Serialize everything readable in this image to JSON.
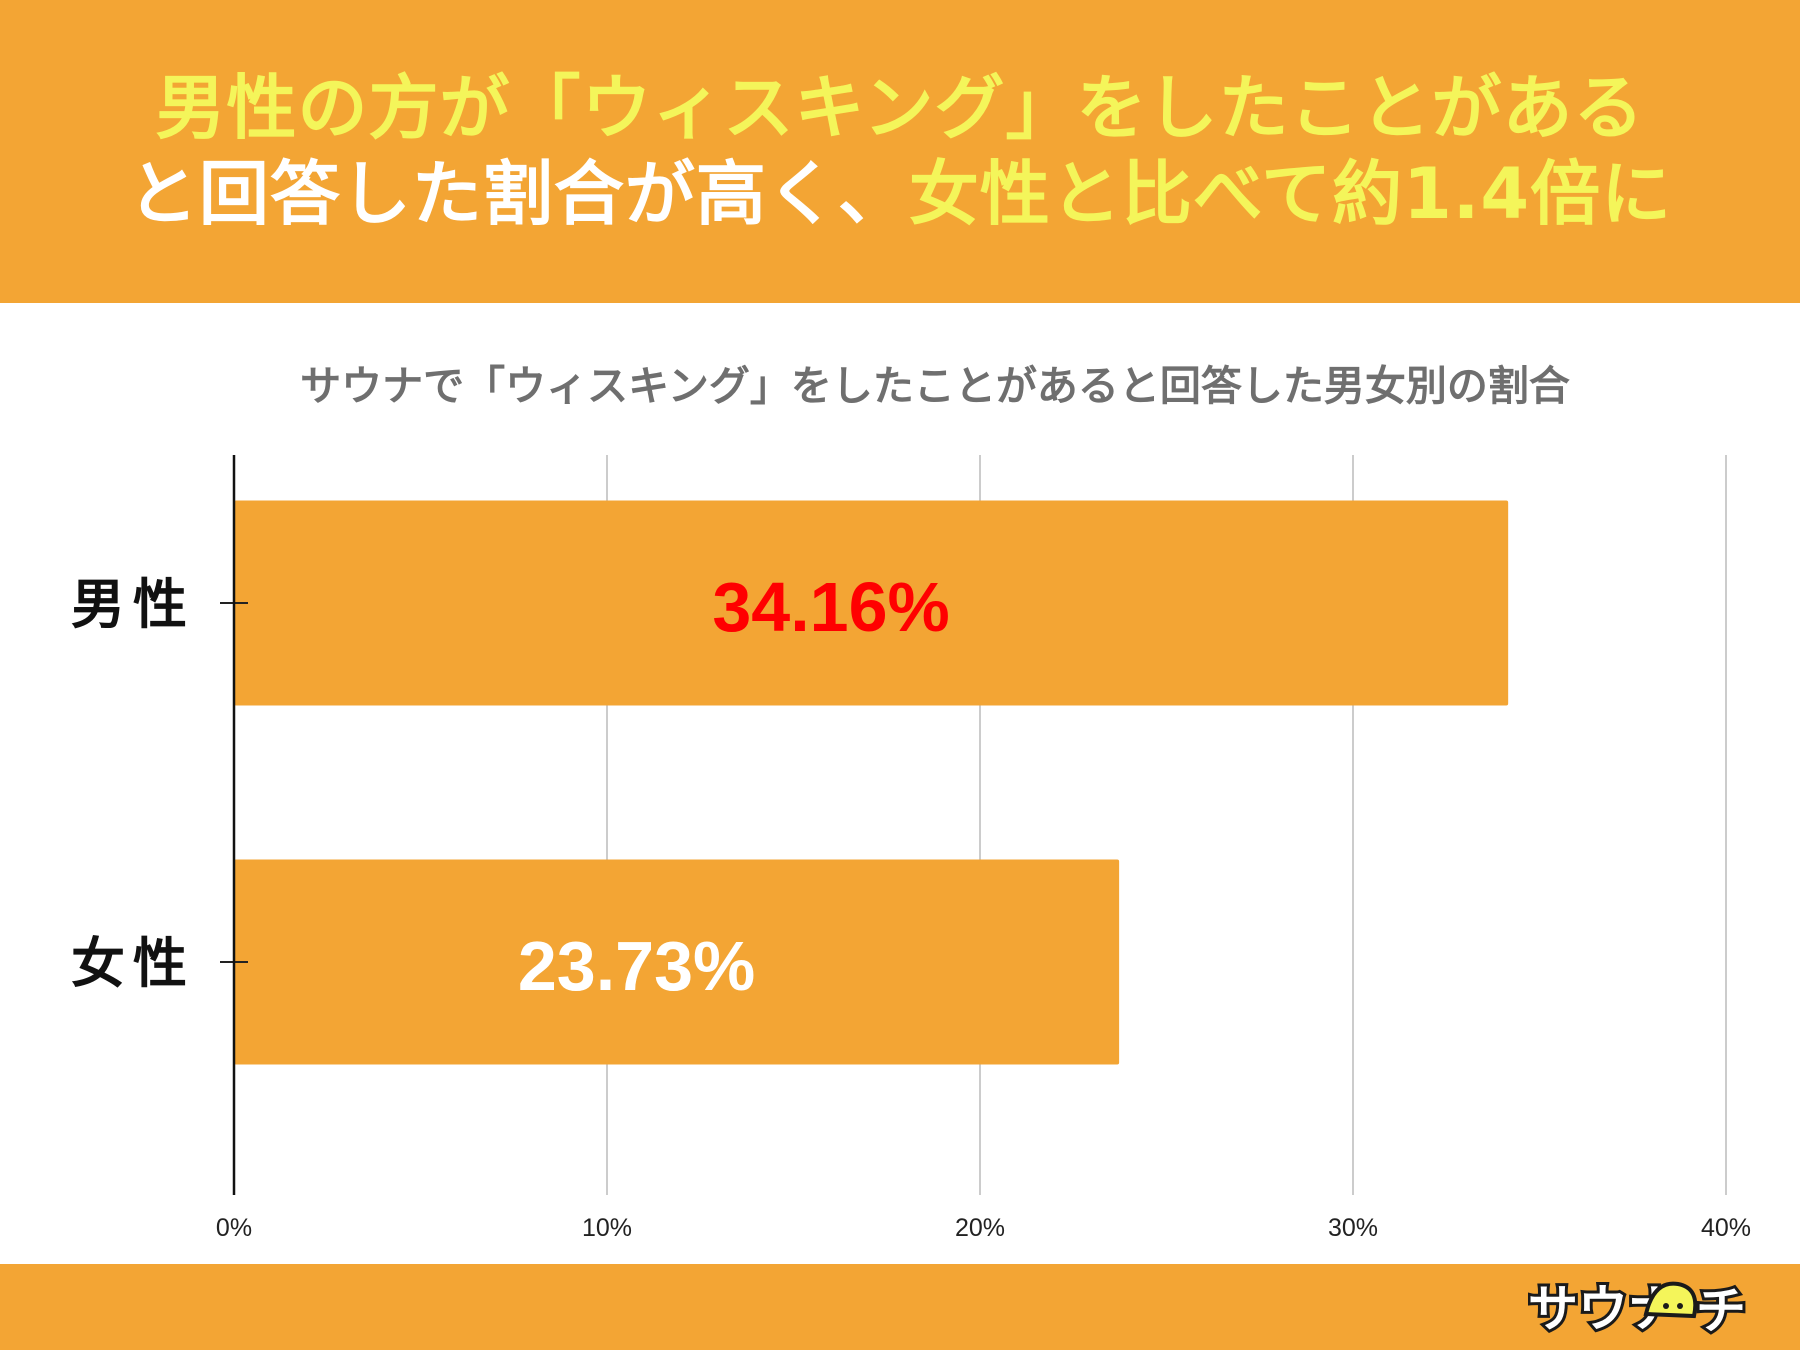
{
  "headline": {
    "line1": "男性の方が「ウィスキング」をしたことがある",
    "line2_white": "と回答した割合が高く、",
    "line2_yellow": "女性と比べて約1.4倍に"
  },
  "colors": {
    "accent": "#f3a534",
    "headline_yellow": "#f4f55a",
    "headline_white": "#ffffff",
    "highlight_label": "#ff0000",
    "grid": "#cccccc"
  },
  "chart_data": {
    "type": "bar",
    "orientation": "horizontal",
    "title": "サウナで「ウィスキング」をしたことがあると回答した男女別の割合",
    "categories": [
      "男性",
      "女性"
    ],
    "values": [
      34.16,
      23.73
    ],
    "data_labels": [
      "34.16%",
      "23.73%"
    ],
    "data_label_colors": [
      "#ff0000",
      "#ffffff"
    ],
    "xlim": [
      0,
      40
    ],
    "xticks": [
      0,
      10,
      20,
      30,
      40
    ],
    "xtick_labels": [
      "0%",
      "10%",
      "20%",
      "30%",
      "40%"
    ],
    "grid": true,
    "bar_color": "#f3a534"
  },
  "logo": {
    "text": "サウナ",
    "text2": "チ",
    "icon": "sauna-hat-icon"
  }
}
